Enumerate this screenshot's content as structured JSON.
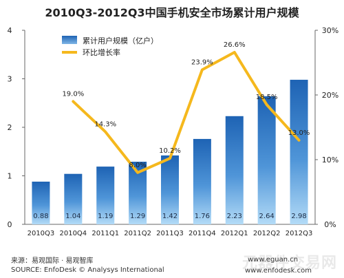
{
  "chart_data": {
    "type": "bar+line",
    "title": "2010Q3-2012Q3中国手机安全市场累计用户规模",
    "categories": [
      "2010Q3",
      "2010Q4",
      "2011Q1",
      "2011Q2",
      "2011Q3",
      "2011Q4",
      "2012Q1",
      "2012Q2",
      "2012Q3"
    ],
    "bar_series": {
      "name": "累计用户规模（亿户）",
      "values": [
        0.88,
        1.04,
        1.19,
        1.29,
        1.42,
        1.76,
        2.23,
        2.64,
        2.98
      ],
      "value_labels": [
        "0.88",
        "1.04",
        "1.19",
        "1.29",
        "1.42",
        "1.76",
        "2.23",
        "2.64",
        "2.98"
      ],
      "axis": "left"
    },
    "line_series": {
      "name": "环比增长率",
      "values": [
        null,
        19.0,
        14.3,
        8.0,
        10.2,
        23.9,
        26.6,
        18.5,
        13.0
      ],
      "value_labels": [
        "",
        "19.0%",
        "14.3%",
        "8.0%",
        "10.2%",
        "23.9%",
        "26.6%",
        "18.5%",
        "13.0%"
      ],
      "axis": "right",
      "color": "#f5b81d"
    },
    "left_axis": {
      "ylim": [
        0,
        4
      ],
      "ticks": [
        "0",
        "1",
        "2",
        "3",
        "4"
      ]
    },
    "right_axis": {
      "ylim": [
        0,
        30
      ],
      "ticks": [
        "0%",
        "10%",
        "20%",
        "30%"
      ]
    },
    "grid": false,
    "legend_position": "top-left",
    "colors": {
      "bar_dark": "#1e63b4",
      "bar_light": "#a9d4f5",
      "line": "#f5b81d"
    }
  },
  "footer": {
    "source_cn": "来源：易观国际 · 易观智库",
    "source_en": "SOURCE: EnfoDesk © Analysys International",
    "site1": "www.eguan.cn",
    "site2": "www.enfodesk.com",
    "watermark": "元器件交易网"
  }
}
